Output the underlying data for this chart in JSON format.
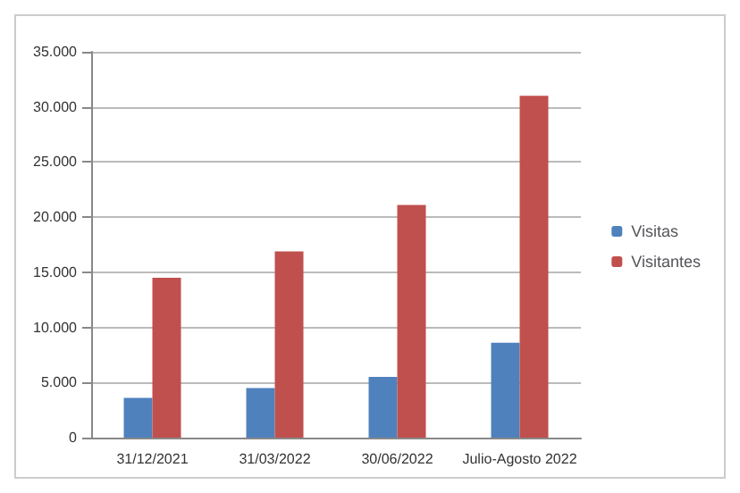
{
  "chart_data": {
    "type": "bar",
    "categories": [
      "31/12/2021",
      "31/03/2022",
      "30/06/2022",
      "Julio-Agosto 2022"
    ],
    "series": [
      {
        "name": "Visitas",
        "color": "#4f81bd",
        "values": [
          3600,
          4500,
          5500,
          8600
        ]
      },
      {
        "name": "Visitantes",
        "color": "#c0504d",
        "values": [
          14500,
          16900,
          21100,
          31000
        ]
      }
    ],
    "ylim": [
      0,
      35000
    ],
    "yticks": [
      {
        "value": 0,
        "label": "0"
      },
      {
        "value": 5000,
        "label": "5.000"
      },
      {
        "value": 10000,
        "label": "10.000"
      },
      {
        "value": 15000,
        "label": "15.000"
      },
      {
        "value": 20000,
        "label": "20.000"
      },
      {
        "value": 25000,
        "label": "25.000"
      },
      {
        "value": 30000,
        "label": "30.000"
      },
      {
        "value": 35000,
        "label": "35.000"
      }
    ],
    "grid": "y",
    "legend": "right"
  }
}
